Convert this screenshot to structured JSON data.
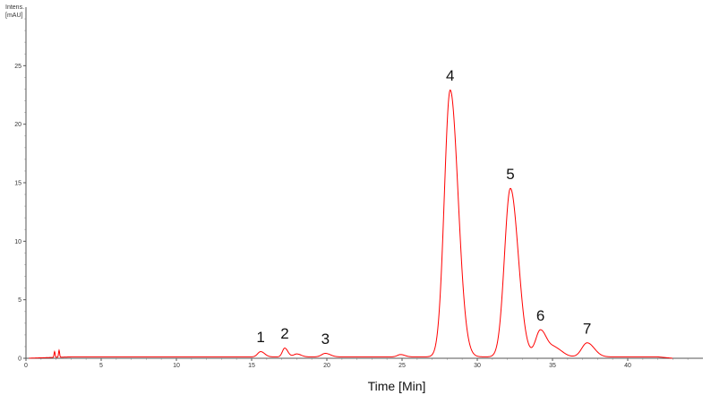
{
  "chart_data": {
    "type": "line",
    "title": "",
    "xlabel": "Time [Min]",
    "ylabel_lines": [
      "Intens.",
      "[mAU]"
    ],
    "xlim": [
      0,
      45
    ],
    "ylim": [
      0,
      30
    ],
    "x_ticks": [
      0,
      5,
      10,
      15,
      20,
      25,
      30,
      35,
      40
    ],
    "y_ticks": [
      0,
      5,
      10,
      15,
      20,
      25
    ],
    "grid": false,
    "line_color": "#ff0000",
    "baseline_level": 0.12,
    "noise_spikes": [
      {
        "x": 1.9,
        "y": 0.5
      },
      {
        "x": 2.2,
        "y": 0.6
      }
    ],
    "peaks": [
      {
        "label": "1",
        "x": 15.6,
        "y": 0.45
      },
      {
        "label": "2",
        "x": 17.2,
        "y": 0.75
      },
      {
        "label": "",
        "x": 18.0,
        "y": 0.25
      },
      {
        "label": "3",
        "x": 19.9,
        "y": 0.3
      },
      {
        "label": "",
        "x": 24.9,
        "y": 0.2
      },
      {
        "label": "4",
        "x": 28.2,
        "y": 22.8
      },
      {
        "label": "5",
        "x": 32.2,
        "y": 14.4
      },
      {
        "label": "6",
        "x": 34.2,
        "y": 2.3
      },
      {
        "label": "",
        "x": 35.2,
        "y": 0.7
      },
      {
        "label": "7",
        "x": 37.3,
        "y": 1.2
      }
    ]
  }
}
